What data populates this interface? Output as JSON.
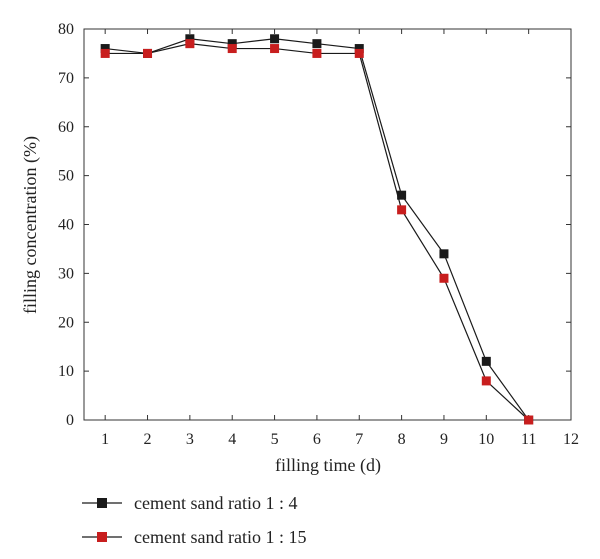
{
  "chart_data": {
    "type": "line",
    "xlabel": "filling time (d)",
    "ylabel": "filling concentration (%)",
    "xlim": [
      0.5,
      12
    ],
    "ylim": [
      0,
      80
    ],
    "xticks": [
      1,
      2,
      3,
      4,
      5,
      6,
      7,
      8,
      9,
      10,
      11,
      12
    ],
    "yticks": [
      0,
      10,
      20,
      30,
      40,
      50,
      60,
      70,
      80
    ],
    "grid": false,
    "legend_position": "bottom-left (below plot)",
    "series": [
      {
        "name": "cement sand ratio 1 : 4",
        "color": "#1a1a1a",
        "marker": "square",
        "x": [
          1,
          2,
          3,
          4,
          5,
          6,
          7,
          8,
          9,
          10,
          11
        ],
        "y": [
          76,
          75,
          78,
          77,
          78,
          77,
          76,
          46,
          34,
          12,
          0
        ]
      },
      {
        "name": "cement sand ratio 1 : 15",
        "color": "#c81e1e",
        "marker": "square",
        "x": [
          1,
          2,
          3,
          4,
          5,
          6,
          7,
          8,
          9,
          10,
          11
        ],
        "y": [
          75,
          75,
          77,
          76,
          76,
          75,
          75,
          43,
          29,
          8,
          0
        ]
      }
    ]
  }
}
